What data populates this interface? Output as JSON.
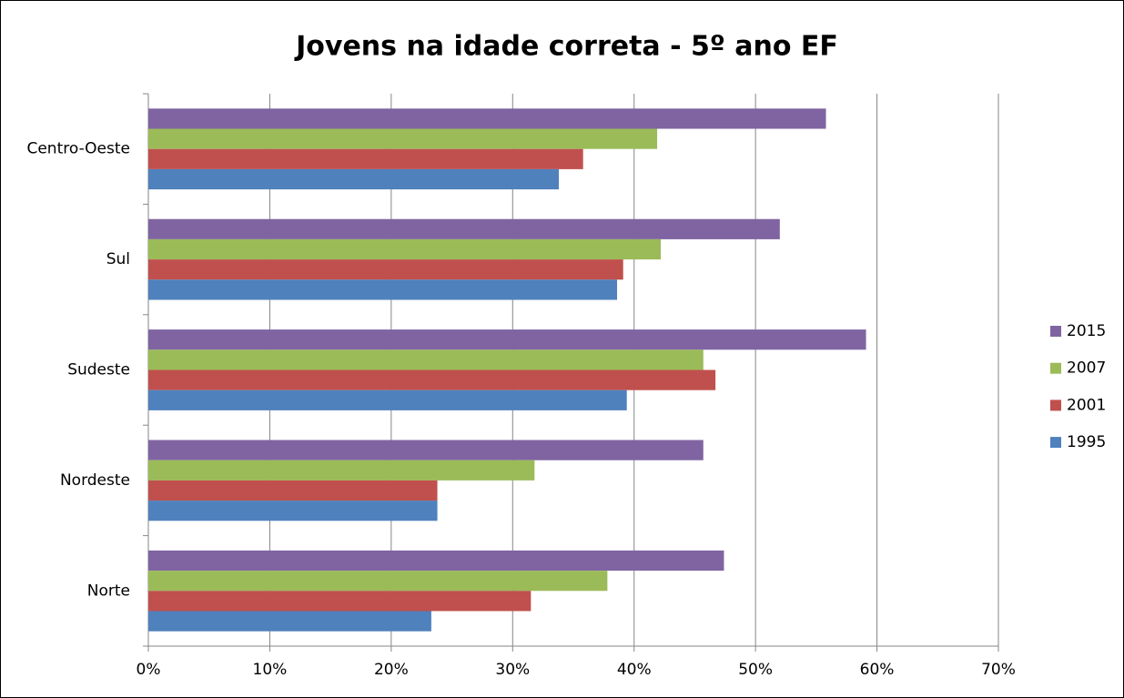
{
  "chart_data": {
    "type": "bar",
    "orientation": "horizontal",
    "title": "Jovens na idade correta - 5º ano EF",
    "categories": [
      "Centro-Oeste",
      "Sul",
      "Sudeste",
      "Nordeste",
      "Norte"
    ],
    "series": [
      {
        "name": "2015",
        "color": "#8064a2",
        "values": [
          55.8,
          52.0,
          59.1,
          45.7,
          47.4
        ]
      },
      {
        "name": "2007",
        "color": "#9bbb59",
        "values": [
          41.9,
          42.2,
          45.7,
          31.8,
          37.8
        ]
      },
      {
        "name": "2001",
        "color": "#c0504d",
        "values": [
          35.8,
          39.1,
          46.7,
          23.8,
          31.5
        ]
      },
      {
        "name": "1995",
        "color": "#4f81bd",
        "values": [
          33.8,
          38.6,
          39.4,
          23.8,
          23.3
        ]
      }
    ],
    "xlim": [
      0,
      70
    ],
    "xticks": [
      {
        "value": 0,
        "label": "0%"
      },
      {
        "value": 10,
        "label": "10%"
      },
      {
        "value": 20,
        "label": "20%"
      },
      {
        "value": 30,
        "label": "30%"
      },
      {
        "value": 40,
        "label": "40%"
      },
      {
        "value": 50,
        "label": "50%"
      },
      {
        "value": 60,
        "label": "60%"
      },
      {
        "value": 70,
        "label": "70%"
      }
    ],
    "grid": true,
    "legend": "right"
  }
}
